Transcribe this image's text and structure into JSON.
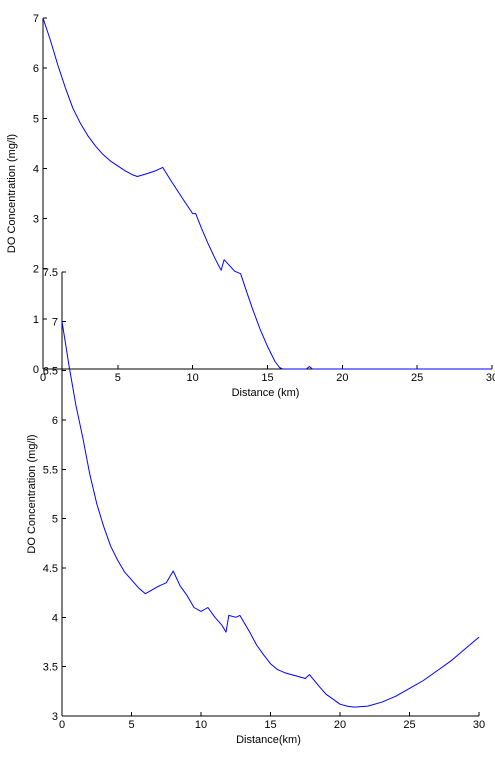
{
  "colors": {
    "line": "#0000ff",
    "axis": "#000000",
    "background": "#ffffff"
  },
  "chart_data": [
    {
      "type": "line",
      "xlabel": "Distance (km)",
      "ylabel": "DO Concentration (mg/l)",
      "xlim": [
        0,
        30
      ],
      "ylim": [
        0,
        7
      ],
      "xticks": [
        "0",
        "5",
        "10",
        "15",
        "20",
        "25",
        "30"
      ],
      "yticks": [
        "0",
        "1",
        "2",
        "3",
        "4",
        "5",
        "6",
        "7"
      ],
      "grid": false,
      "series": [
        {
          "x": [
            0,
            0.5,
            1,
            1.5,
            2,
            2.5,
            3,
            3.5,
            4,
            4.5,
            5,
            5.5,
            6,
            6.3,
            7,
            7.5,
            8,
            8.5,
            9,
            9.5,
            10,
            10.2,
            10.6,
            11,
            11.5,
            11.9,
            12.1,
            12.5,
            12.8,
            13.2,
            13.6,
            14,
            14.5,
            15,
            15.5,
            15.8,
            16,
            17,
            17.6,
            17.8,
            18,
            19,
            20,
            22,
            25,
            28,
            30
          ],
          "y": [
            7,
            6.55,
            6.05,
            5.6,
            5.2,
            4.9,
            4.65,
            4.45,
            4.28,
            4.15,
            4.05,
            3.95,
            3.87,
            3.84,
            3.9,
            3.95,
            4.02,
            3.78,
            3.55,
            3.32,
            3.1,
            3.1,
            2.8,
            2.52,
            2.2,
            1.97,
            2.18,
            2.05,
            1.95,
            1.9,
            1.55,
            1.2,
            0.8,
            0.45,
            0.15,
            0.03,
            0,
            0,
            0,
            0.05,
            0,
            0,
            0,
            0,
            0,
            0,
            0
          ]
        }
      ]
    },
    {
      "type": "line",
      "xlabel": "Distance(km)",
      "ylabel": "DO Concentration (mg/l)",
      "xlim": [
        0,
        30
      ],
      "ylim": [
        3,
        7.5
      ],
      "xticks": [
        "0",
        "5",
        "10",
        "15",
        "20",
        "25",
        "30"
      ],
      "yticks": [
        "3",
        "3.5",
        "4",
        "4.5",
        "5",
        "5.5",
        "6",
        "6.5",
        "7",
        "7.5"
      ],
      "grid": false,
      "series": [
        {
          "x": [
            0,
            0.5,
            1,
            1.5,
            2,
            2.5,
            3,
            3.5,
            4,
            4.5,
            5,
            5.5,
            6,
            6.5,
            7,
            7.5,
            8,
            8.5,
            9,
            9.5,
            10,
            10.5,
            11,
            11.5,
            11.8,
            12,
            12.5,
            12.8,
            13.5,
            14,
            14.5,
            15,
            15.5,
            16,
            16.5,
            17,
            17.5,
            17.8,
            18.5,
            19,
            19.5,
            20,
            20.5,
            21,
            22,
            23,
            24,
            25,
            26,
            27,
            28,
            29,
            30
          ],
          "y": [
            7,
            6.55,
            6.15,
            5.82,
            5.45,
            5.15,
            4.92,
            4.72,
            4.58,
            4.46,
            4.38,
            4.3,
            4.24,
            4.28,
            4.32,
            4.35,
            4.47,
            4.32,
            4.22,
            4.1,
            4.06,
            4.1,
            4.0,
            3.92,
            3.85,
            4.02,
            4.0,
            4.02,
            3.85,
            3.72,
            3.62,
            3.53,
            3.47,
            3.44,
            3.42,
            3.4,
            3.38,
            3.42,
            3.3,
            3.22,
            3.17,
            3.12,
            3.1,
            3.09,
            3.1,
            3.14,
            3.2,
            3.28,
            3.36,
            3.46,
            3.56,
            3.68,
            3.8
          ]
        }
      ]
    }
  ]
}
